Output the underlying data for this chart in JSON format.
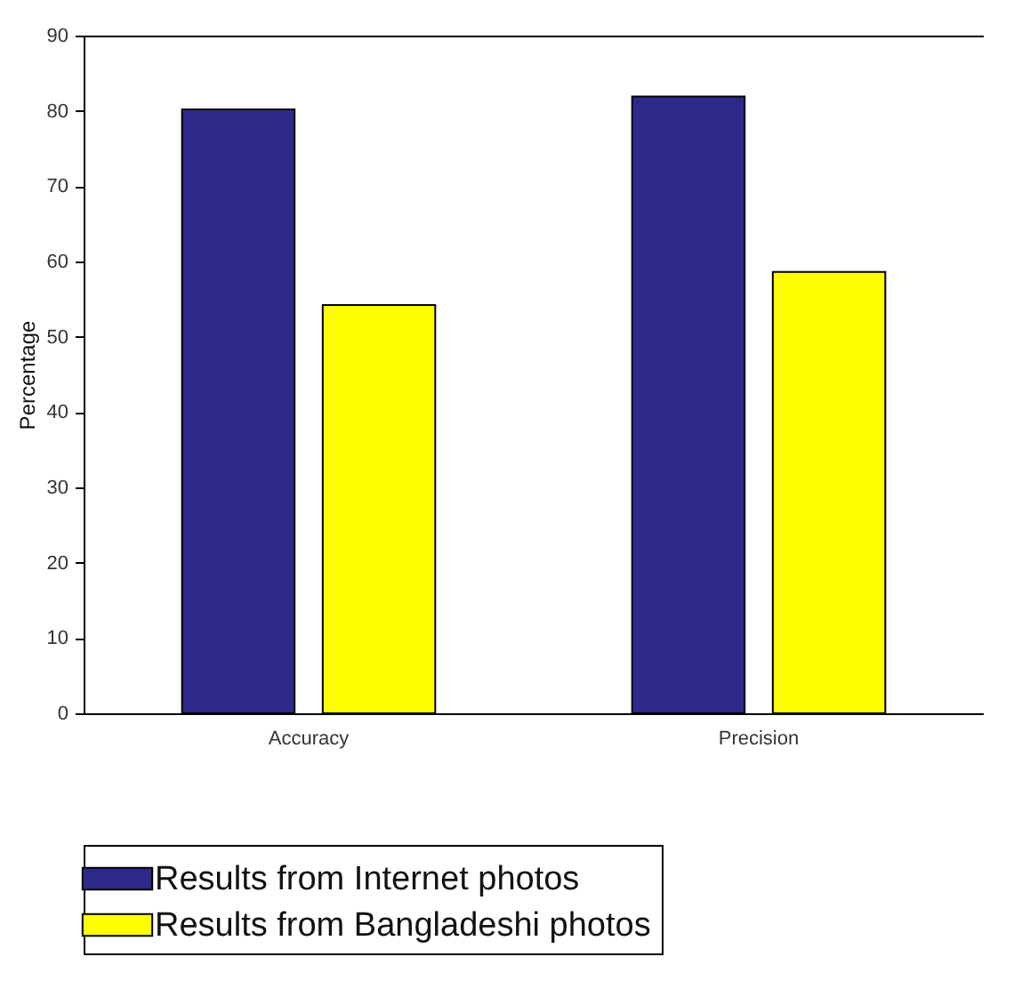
{
  "chart_data": {
    "type": "bar",
    "ylabel": "Percentage",
    "categories": [
      "Accuracy",
      "Precision"
    ],
    "series": [
      {
        "name": "Results from Internet photos",
        "color": "#2e2a8c",
        "values": [
          80.2,
          81.9
        ]
      },
      {
        "name": "Results from Bangladeshi photos",
        "color": "#ffff00",
        "values": [
          54.2,
          58.6
        ]
      }
    ],
    "ylim": [
      0,
      90
    ],
    "yticks": [
      0,
      10,
      20,
      30,
      40,
      50,
      60,
      70,
      80,
      90
    ],
    "grid": false,
    "legend": "bottom"
  }
}
